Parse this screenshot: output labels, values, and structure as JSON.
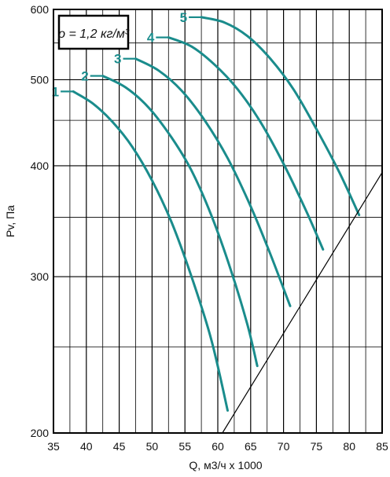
{
  "chart_data": {
    "type": "line",
    "title": "",
    "xlabel": "Q, м3/ч х 1000",
    "ylabel": "Pv, Па",
    "xlim": [
      35,
      85
    ],
    "ylim": [
      200,
      600
    ],
    "y_scale": "log",
    "grid": true,
    "x_ticks": [
      "35",
      "40",
      "45",
      "50",
      "55",
      "60",
      "65",
      "70",
      "75",
      "80",
      "85"
    ],
    "y_ticks": [
      "200",
      "300",
      "400",
      "500",
      "600"
    ],
    "annotation": "ρ = 1,2 кг/м³",
    "curve_color": "#1a8c8c",
    "series": [
      {
        "name": "1",
        "x": [
          38.0,
          41.0,
          44.0,
          47.0,
          50.0,
          53.0,
          56.0,
          59.0,
          61.5
        ],
        "y": [
          485,
          470,
          448,
          420,
          385,
          345,
          300,
          255,
          212
        ]
      },
      {
        "name": "2",
        "x": [
          42.5,
          46.0,
          49.5,
          53.0,
          56.0,
          59.0,
          62.0,
          64.5,
          66.0
        ],
        "y": [
          505,
          490,
          465,
          430,
          395,
          352,
          305,
          265,
          238
        ]
      },
      {
        "name": "3",
        "x": [
          47.5,
          51.0,
          54.5,
          58.0,
          61.5,
          65.0,
          68.0,
          71.0
        ],
        "y": [
          528,
          512,
          486,
          450,
          408,
          360,
          318,
          278
        ]
      },
      {
        "name": "4",
        "x": [
          52.5,
          56.0,
          59.5,
          63.0,
          66.5,
          70.0,
          73.5,
          76.0
        ],
        "y": [
          558,
          545,
          520,
          488,
          448,
          402,
          355,
          322
        ]
      },
      {
        "name": "5",
        "x": [
          57.5,
          61.0,
          64.5,
          68.0,
          71.5,
          75.0,
          78.5,
          81.5
        ],
        "y": [
          588,
          580,
          560,
          528,
          488,
          440,
          393,
          352
        ]
      }
    ],
    "boundary_line": {
      "x": [
        60.7,
        85.0
      ],
      "y": [
        200,
        393
      ]
    }
  }
}
